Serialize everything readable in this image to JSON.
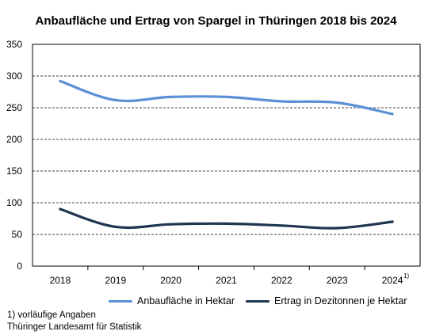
{
  "chart_data": {
    "type": "line",
    "title": "Anbaufläche und Ertrag von Spargel in Thüringen 2018 bis 2024",
    "categories": [
      "2018",
      "2019",
      "2020",
      "2021",
      "2022",
      "2023",
      "2024"
    ],
    "last_category_footnote_mark": "1)",
    "y_ticks": [
      "0",
      "50",
      "100",
      "150",
      "200",
      "250",
      "300",
      "350"
    ],
    "ylim": [
      0,
      350
    ],
    "grid": true,
    "legend_placement": "bottom",
    "series": [
      {
        "name": "Anbaufläche in Hektar",
        "color": "#5b8fd6",
        "values": [
          292,
          262,
          267,
          267,
          260,
          258,
          240
        ]
      },
      {
        "name": "Ertrag in Dezitonnen je Hektar",
        "color": "#1f3550",
        "values": [
          90,
          62,
          66,
          67,
          64,
          60,
          70
        ]
      }
    ],
    "footnotes": [
      "1) vorläufige Angaben",
      "Thüringer Landesamt für Statistik"
    ]
  }
}
